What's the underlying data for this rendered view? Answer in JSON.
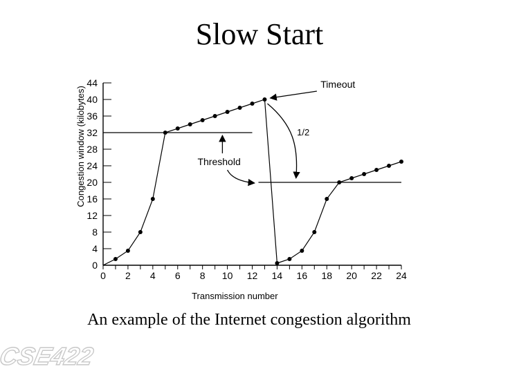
{
  "slide": {
    "title": "Slow Start",
    "caption": "An example of the Internet congestion algorithm",
    "logo_text": "CSE422"
  },
  "chart_data": {
    "type": "line",
    "title": "",
    "xlabel": "Transmission number",
    "ylabel": "Congestion window (kilobytes)",
    "xlim": [
      0,
      24
    ],
    "ylim": [
      0,
      44
    ],
    "x_ticks": [
      0,
      2,
      4,
      6,
      8,
      10,
      12,
      14,
      16,
      18,
      20,
      22,
      24
    ],
    "y_ticks": [
      0,
      4,
      8,
      12,
      16,
      20,
      24,
      28,
      32,
      36,
      40,
      44
    ],
    "grid": false,
    "series": [
      {
        "points": [
          [
            0,
            0
          ],
          [
            1,
            1.5
          ],
          [
            2,
            3.5
          ],
          [
            3,
            8
          ],
          [
            4,
            16
          ],
          [
            5,
            32
          ],
          [
            6,
            33
          ],
          [
            7,
            34
          ],
          [
            8,
            35
          ],
          [
            9,
            36
          ],
          [
            10,
            37
          ],
          [
            11,
            38
          ],
          [
            12,
            39
          ],
          [
            13,
            40
          ],
          [
            14,
            0.5
          ],
          [
            15,
            1.5
          ],
          [
            16,
            3.5
          ],
          [
            17,
            8
          ],
          [
            18,
            16
          ],
          [
            19,
            20
          ],
          [
            20,
            21
          ],
          [
            21,
            22
          ],
          [
            22,
            23
          ],
          [
            23,
            24
          ],
          [
            24,
            25
          ]
        ]
      }
    ],
    "thresholds": [
      {
        "y": 32,
        "x_start": 0,
        "x_end": 12
      },
      {
        "y": 20,
        "x_start": 12.5,
        "x_end": 24
      }
    ],
    "annotations": [
      {
        "text": "Timeout"
      },
      {
        "text": "1/2"
      },
      {
        "text": "Threshold"
      }
    ],
    "colors": {
      "line": "#000000",
      "marker": "#000000",
      "background": "#ffffff"
    }
  }
}
